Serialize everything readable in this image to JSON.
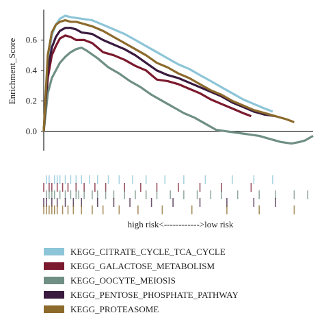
{
  "chart_data": {
    "type": "line",
    "ylabel": "Enrichment_Score",
    "ylim": [
      -0.1,
      0.8
    ],
    "yticks": [
      0.0,
      0.2,
      0.4,
      0.6
    ],
    "ytick_labels": [
      "0.0",
      "0.2",
      "0.4",
      "0.6"
    ],
    "xlabel": "high risk<------------>low risk",
    "zero_line": true,
    "legend_position": "bottom",
    "series": [
      {
        "name": "KEGG_CITRATE_CYCLE_TCA_CYCLE",
        "color": "#8dc5d8",
        "x": [
          0,
          0.015,
          0.03,
          0.045,
          0.06,
          0.08,
          0.1,
          0.14,
          0.18,
          0.22,
          0.26,
          0.3,
          0.34,
          0.38,
          0.42,
          0.46,
          0.5,
          0.54,
          0.58,
          0.62,
          0.66,
          0.7,
          0.74,
          0.78,
          0.82,
          0.85
        ],
        "values": [
          0.0,
          0.45,
          0.63,
          0.7,
          0.74,
          0.76,
          0.75,
          0.74,
          0.73,
          0.7,
          0.67,
          0.64,
          0.6,
          0.56,
          0.52,
          0.48,
          0.44,
          0.41,
          0.37,
          0.33,
          0.29,
          0.25,
          0.21,
          0.18,
          0.15,
          0.13
        ]
      },
      {
        "name": "KEGG_GALACTOSE_METABOLISM",
        "color": "#7b1a2e",
        "x": [
          0,
          0.015,
          0.03,
          0.045,
          0.06,
          0.08,
          0.1,
          0.12,
          0.15,
          0.18,
          0.22,
          0.26,
          0.3,
          0.34,
          0.38,
          0.4,
          0.42,
          0.46,
          0.5,
          0.54,
          0.58,
          0.62,
          0.66,
          0.7,
          0.74,
          0.77
        ],
        "values": [
          0.0,
          0.35,
          0.5,
          0.56,
          0.61,
          0.63,
          0.62,
          0.6,
          0.6,
          0.58,
          0.52,
          0.5,
          0.47,
          0.43,
          0.4,
          0.37,
          0.34,
          0.33,
          0.31,
          0.28,
          0.25,
          0.21,
          0.18,
          0.15,
          0.12,
          0.1
        ]
      },
      {
        "name": "KEGG_OOCYTE_MEIOSIS",
        "color": "#6f8f84",
        "x": [
          0,
          0.015,
          0.03,
          0.045,
          0.06,
          0.08,
          0.1,
          0.12,
          0.14,
          0.16,
          0.2,
          0.24,
          0.28,
          0.32,
          0.36,
          0.4,
          0.44,
          0.48,
          0.52,
          0.56,
          0.6,
          0.64,
          0.68,
          0.72,
          0.76,
          0.8,
          0.84,
          0.88,
          0.92,
          0.95,
          0.97,
          1.0
        ],
        "values": [
          0.0,
          0.25,
          0.35,
          0.4,
          0.45,
          0.49,
          0.52,
          0.54,
          0.55,
          0.53,
          0.48,
          0.42,
          0.38,
          0.33,
          0.29,
          0.24,
          0.2,
          0.16,
          0.12,
          0.09,
          0.05,
          0.01,
          0.0,
          -0.01,
          -0.02,
          -0.03,
          -0.05,
          -0.07,
          -0.08,
          -0.07,
          -0.06,
          -0.03
        ]
      },
      {
        "name": "KEGG_PENTOSE_PHOSPHATE_PATHWAY",
        "color": "#3a1a3e",
        "x": [
          0,
          0.015,
          0.03,
          0.045,
          0.06,
          0.08,
          0.1,
          0.12,
          0.14,
          0.18,
          0.22,
          0.26,
          0.3,
          0.34,
          0.38,
          0.42,
          0.46,
          0.5,
          0.54,
          0.58,
          0.62,
          0.66,
          0.7,
          0.74,
          0.78,
          0.82,
          0.86
        ],
        "values": [
          0.0,
          0.4,
          0.55,
          0.62,
          0.66,
          0.68,
          0.68,
          0.67,
          0.65,
          0.64,
          0.6,
          0.57,
          0.54,
          0.5,
          0.45,
          0.4,
          0.37,
          0.35,
          0.32,
          0.29,
          0.26,
          0.23,
          0.19,
          0.16,
          0.13,
          0.11,
          0.1
        ]
      },
      {
        "name": "KEGG_PROTEASOME",
        "color": "#8c6a2c",
        "x": [
          0,
          0.015,
          0.03,
          0.045,
          0.06,
          0.08,
          0.1,
          0.12,
          0.14,
          0.18,
          0.22,
          0.26,
          0.3,
          0.34,
          0.38,
          0.42,
          0.46,
          0.5,
          0.54,
          0.58,
          0.62,
          0.66,
          0.7,
          0.74,
          0.78,
          0.82,
          0.86,
          0.9,
          0.93
        ],
        "values": [
          0.0,
          0.5,
          0.65,
          0.7,
          0.72,
          0.73,
          0.72,
          0.72,
          0.71,
          0.69,
          0.66,
          0.62,
          0.58,
          0.54,
          0.5,
          0.45,
          0.42,
          0.38,
          0.35,
          0.31,
          0.27,
          0.24,
          0.2,
          0.17,
          0.14,
          0.12,
          0.1,
          0.08,
          0.06
        ]
      }
    ],
    "hit_bands": [
      {
        "series": "KEGG_CITRATE_CYCLE_TCA_CYCLE",
        "color": "#8dc5d8",
        "positions": [
          0.01,
          0.02,
          0.04,
          0.05,
          0.06,
          0.08,
          0.1,
          0.12,
          0.14,
          0.17,
          0.2,
          0.24,
          0.28,
          0.33,
          0.38,
          0.45,
          0.52,
          0.6,
          0.7,
          0.78,
          0.85
        ]
      },
      {
        "series": "KEGG_GALACTOSE_METABOLISM",
        "color": "#7b1a2e",
        "positions": [
          0.0,
          0.02,
          0.03,
          0.05,
          0.07,
          0.09,
          0.12,
          0.15,
          0.19,
          0.23,
          0.3,
          0.36,
          0.42,
          0.5,
          0.58,
          0.66,
          0.77
        ]
      },
      {
        "series": "KEGG_OOCYTE_MEIOSIS",
        "color": "#6f8f84",
        "positions": [
          0.01,
          0.02,
          0.03,
          0.04,
          0.06,
          0.08,
          0.1,
          0.12,
          0.13,
          0.15,
          0.18,
          0.2,
          0.23,
          0.26,
          0.3,
          0.34,
          0.38,
          0.42,
          0.47,
          0.52,
          0.57,
          0.62,
          0.66,
          0.72,
          0.8,
          0.86,
          0.93,
          0.98
        ]
      },
      {
        "series": "KEGG_PENTOSE_PHOSPHATE_PATHWAY",
        "color": "#3a1a3e",
        "positions": [
          0.0,
          0.01,
          0.03,
          0.05,
          0.08,
          0.11,
          0.14,
          0.2,
          0.26,
          0.32,
          0.4,
          0.48,
          0.58,
          0.68,
          0.78,
          0.86
        ]
      },
      {
        "series": "KEGG_PROTEASOME",
        "color": "#8c6a2c",
        "positions": [
          0.0,
          0.01,
          0.02,
          0.03,
          0.04,
          0.05,
          0.07,
          0.09,
          0.11,
          0.14,
          0.18,
          0.22,
          0.28,
          0.35,
          0.44,
          0.55,
          0.68,
          0.8,
          0.93
        ]
      }
    ]
  }
}
